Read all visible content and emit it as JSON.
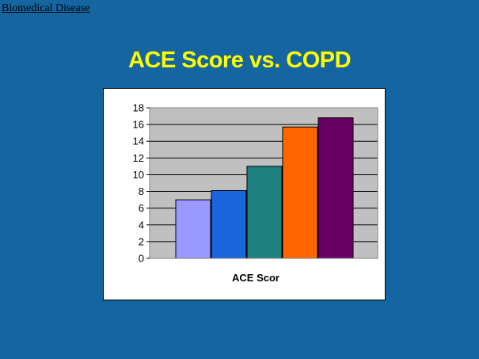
{
  "header": {
    "breadcrumb": "Biomedical Disease",
    "title": "ACE Score vs. COPD"
  },
  "chart_data": {
    "type": "bar",
    "categories": [
      "",
      "",
      "",
      "",
      ""
    ],
    "values": [
      7,
      8.1,
      11,
      15.7,
      16.8
    ],
    "colors": [
      "#9999ff",
      "#1a66dd",
      "#1f8080",
      "#ff6600",
      "#660066"
    ],
    "title": "",
    "xlabel": "ACE Scor",
    "ylabel": "",
    "ylim": [
      0,
      18
    ],
    "yticks": [
      0,
      2,
      4,
      6,
      8,
      10,
      12,
      14,
      16,
      18
    ],
    "grid": true,
    "plot_background": "#c0c0c0"
  }
}
